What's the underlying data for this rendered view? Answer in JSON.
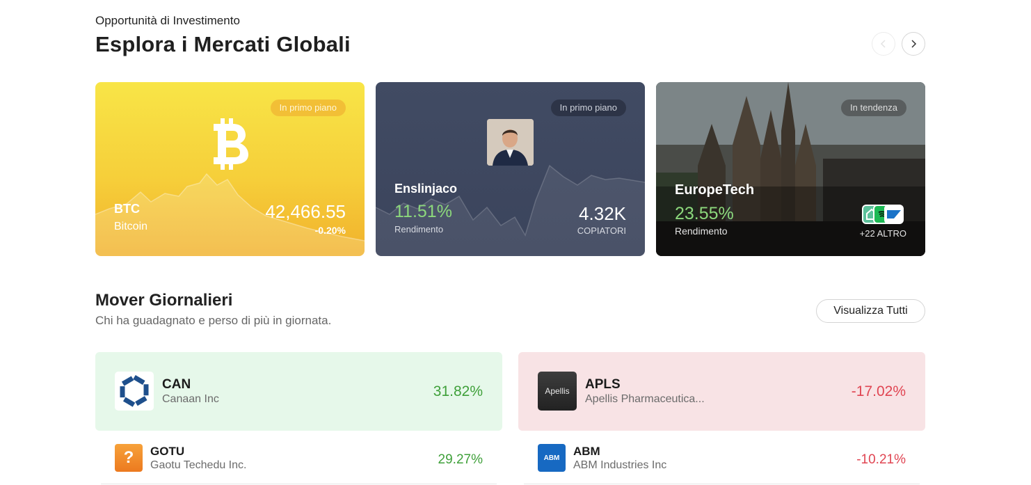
{
  "header": {
    "subtitle": "Opportunità di Investimento",
    "title": "Esplora i Mercati Globali"
  },
  "nav": {
    "prev_icon": "chevron-left-icon",
    "next_icon": "chevron-right-icon"
  },
  "cards": [
    {
      "badge": "In primo piano",
      "icon": "bitcoin-icon",
      "ticker": "BTC",
      "name": "Bitcoin",
      "price": "42,466.55",
      "change": "-0.20%"
    },
    {
      "badge": "In primo piano",
      "name": "Enslinjaco",
      "return_pct": "11.51%",
      "return_label": "Rendimento",
      "copiers": "4.32K",
      "copiers_label": "COPIATORI"
    },
    {
      "badge": "In tendenza",
      "name": "EuropeTech",
      "return_pct": "23.55%",
      "return_label": "Rendimento",
      "more": "+22 ALTRO"
    }
  ],
  "movers": {
    "title": "Mover Giornalieri",
    "subtitle": "Chi ha guadagnato e perso di più in giornata.",
    "view_all": "Visualizza Tutti",
    "gainers": [
      {
        "ticker": "CAN",
        "name": "Canaan Inc",
        "change": "31.82%"
      },
      {
        "ticker": "GOTU",
        "name": "Gaotu Techedu Inc.",
        "change": "29.27%"
      }
    ],
    "losers": [
      {
        "ticker": "APLS",
        "name": "Apellis Pharmaceutica...",
        "change": "-17.02%",
        "logo_text": "Apellis"
      },
      {
        "ticker": "ABM",
        "name": "ABM Industries Inc",
        "change": "-10.21%",
        "logo_text": "ABM"
      }
    ]
  },
  "colors": {
    "gain": "#3fa03a",
    "loss": "#e04552",
    "gain_bg": "#e6f8ea",
    "loss_bg": "#f8e3e5"
  }
}
